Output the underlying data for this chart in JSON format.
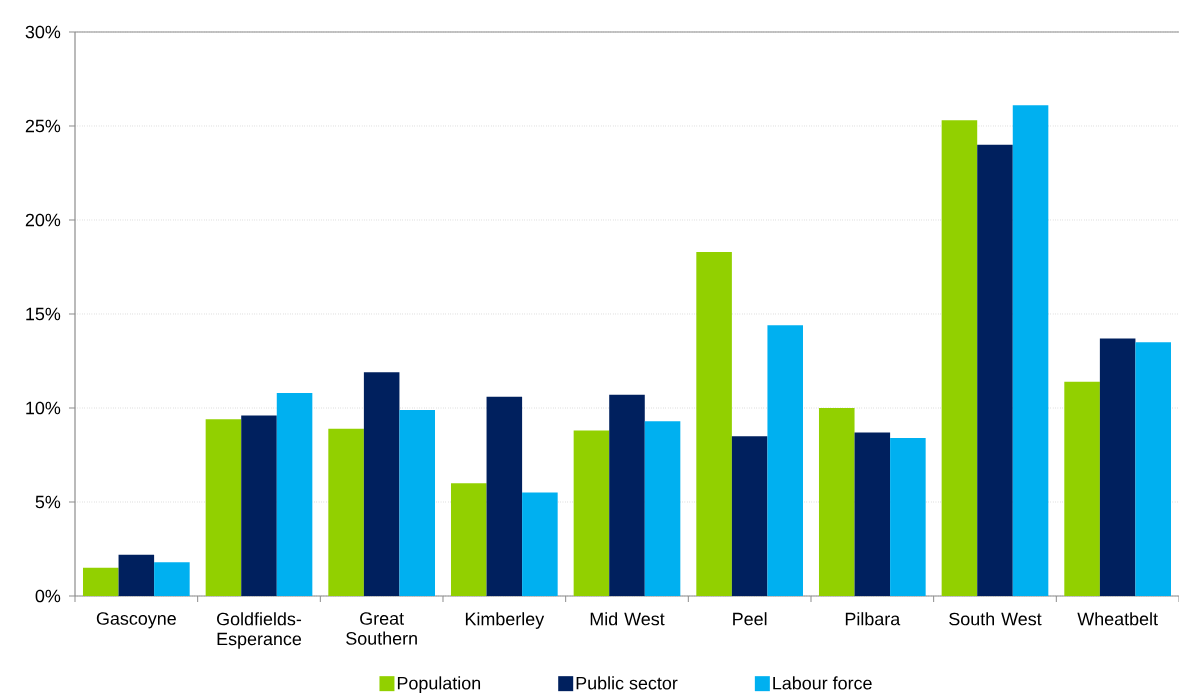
{
  "chart_data": {
    "type": "bar",
    "categories": [
      "Gascoyne",
      "Goldfields-Esperance",
      "Great Southern",
      "Kimberley",
      "Mid West",
      "Peel",
      "Pilbara",
      "South West",
      "Wheatbelt"
    ],
    "series": [
      {
        "name": "Population",
        "color": "#92d000",
        "values": [
          1.5,
          9.4,
          8.9,
          6.0,
          8.8,
          18.3,
          10.0,
          25.3,
          11.4
        ]
      },
      {
        "name": "Public sector",
        "color": "#00205e",
        "values": [
          2.2,
          9.6,
          11.9,
          10.6,
          10.7,
          8.5,
          8.7,
          24.0,
          13.7
        ]
      },
      {
        "name": "Labour force",
        "color": "#00b0f0",
        "values": [
          1.8,
          10.8,
          9.9,
          5.5,
          9.3,
          14.4,
          8.4,
          26.1,
          13.5
        ]
      }
    ],
    "ylim": [
      0,
      30
    ],
    "yticks": [
      {
        "value": 0,
        "label": "0%"
      },
      {
        "value": 5,
        "label": "5%"
      },
      {
        "value": 10,
        "label": "10%"
      },
      {
        "value": 15,
        "label": "15%"
      },
      {
        "value": 20,
        "label": "20%"
      },
      {
        "value": 25,
        "label": "25%"
      },
      {
        "value": 30,
        "label": "30%"
      }
    ],
    "grid": "y",
    "legend": "bottom"
  }
}
